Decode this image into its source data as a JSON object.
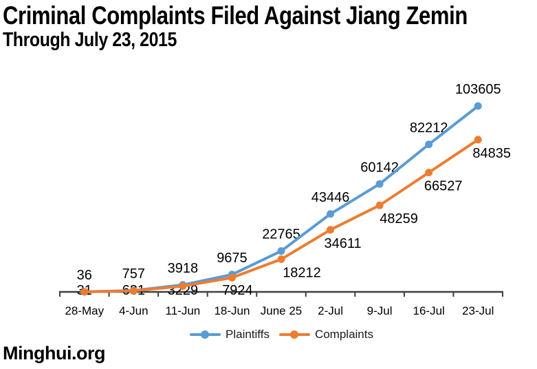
{
  "title": {
    "line1": "Criminal Complaints Filed Against Jiang Zemin",
    "line2": "Through July 23, 2015"
  },
  "footer": {
    "source": "Minghui.org"
  },
  "legend": {
    "items": [
      {
        "label": "Plaintiffs",
        "color": "#5B9BD5"
      },
      {
        "label": "Complaints",
        "color": "#ED7D31"
      }
    ]
  },
  "chart_data": {
    "type": "line",
    "title": "Criminal Complaints Filed Against Jiang Zemin Through July 23, 2015",
    "categories": [
      "28-May",
      "4-Jun",
      "11-Jun",
      "18-Jun",
      "June 25",
      "2-Jul",
      "9-Jul",
      "16-Jul",
      "23-Jul"
    ],
    "series": [
      {
        "name": "Plaintiffs",
        "color": "#5B9BD5",
        "values": [
          36,
          757,
          3918,
          9675,
          22765,
          43446,
          60142,
          82212,
          103605
        ]
      },
      {
        "name": "Complaints",
        "color": "#ED7D31",
        "values": [
          31,
          631,
          3229,
          7924,
          18212,
          34611,
          48259,
          66527,
          84835
        ]
      }
    ],
    "xlabel": "",
    "ylabel": "",
    "ylim": [
      0,
      103605
    ],
    "y_axis_visible": false,
    "grid": false,
    "data_labels": true,
    "marker": "circle",
    "legend_position": "bottom",
    "axis_color": "#3f3f3f",
    "source_label": "Minghui.org"
  }
}
